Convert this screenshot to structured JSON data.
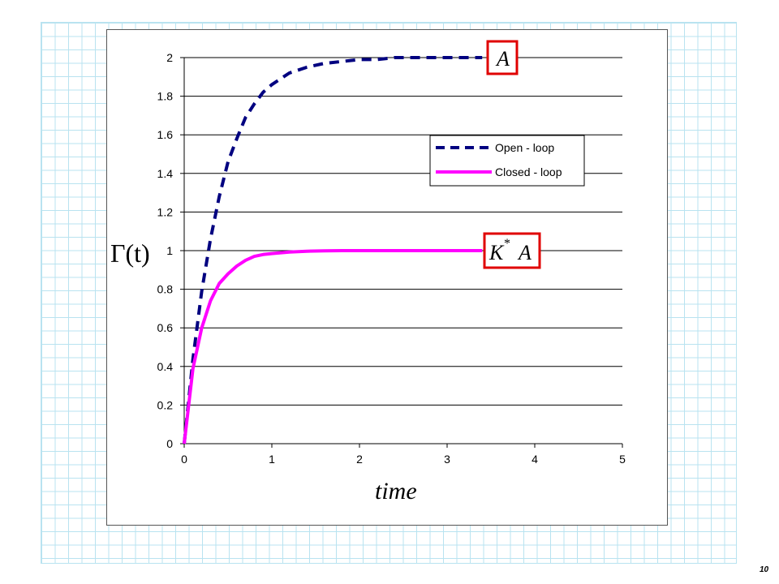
{
  "slide": {
    "page_number": "10"
  },
  "chart_data": {
    "type": "line",
    "xlabel": "time",
    "ylabel": "Γ(t)",
    "xlim": [
      0,
      5
    ],
    "ylim": [
      0,
      2
    ],
    "x_ticks": [
      "0",
      "1",
      "2",
      "3",
      "4",
      "5"
    ],
    "y_ticks": [
      "0",
      "0.2",
      "0.4",
      "0.6",
      "0.8",
      "1",
      "1.2",
      "1.4",
      "1.6",
      "1.8",
      "2"
    ],
    "grid": "horizontal",
    "legend_position": "right",
    "series": [
      {
        "name": "Open - loop",
        "color": "#000080",
        "style": "dashed",
        "x": [
          0,
          0.1,
          0.2,
          0.3,
          0.4,
          0.5,
          0.6,
          0.7,
          0.8,
          0.9,
          1.0,
          1.2,
          1.4,
          1.6,
          1.8,
          2.0,
          2.2,
          2.4,
          2.6,
          2.8,
          3.0,
          3.2,
          3.4
        ],
        "y": [
          0,
          0.44,
          0.79,
          1.06,
          1.28,
          1.46,
          1.58,
          1.69,
          1.76,
          1.82,
          1.86,
          1.92,
          1.95,
          1.97,
          1.98,
          1.99,
          1.99,
          2.0,
          2.0,
          2.0,
          2.0,
          2.0,
          2.0
        ]
      },
      {
        "name": "Closed - loop",
        "color": "#ff00ff",
        "style": "solid",
        "x": [
          0,
          0.1,
          0.2,
          0.3,
          0.4,
          0.5,
          0.6,
          0.7,
          0.8,
          0.9,
          1.0,
          1.2,
          1.4,
          1.6,
          1.8,
          2.0,
          2.5,
          3.0,
          3.4
        ],
        "y": [
          0,
          0.39,
          0.6,
          0.74,
          0.83,
          0.88,
          0.92,
          0.95,
          0.97,
          0.98,
          0.985,
          0.993,
          0.997,
          0.999,
          1.0,
          1.0,
          1.0,
          1.0,
          1.0
        ]
      }
    ],
    "annotations": [
      {
        "label": "A",
        "at_y": 2
      },
      {
        "label_main": "K",
        "label_sup": "*",
        "label_tail": "A",
        "at_y": 1
      }
    ]
  }
}
